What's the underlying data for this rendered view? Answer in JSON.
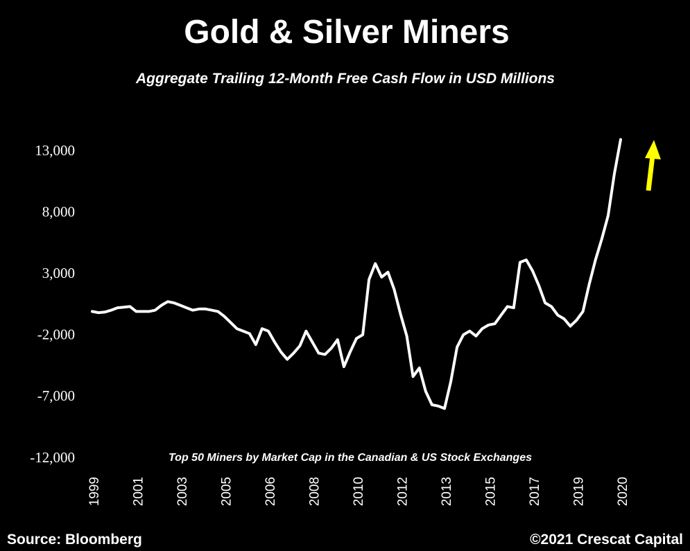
{
  "chart_data": {
    "type": "line",
    "title": "Gold & Silver Miners",
    "subtitle": "Aggregate Trailing 12-Month Free Cash Flow in USD Millions",
    "annotation": "Top 50 Miners by Market Cap in the Canadian & US Stock Exchanges",
    "source": "Source: Bloomberg",
    "credit": "©2021 Crescat Capital",
    "categories": [
      "1999",
      null,
      null,
      null,
      null,
      null,
      null,
      "2001",
      null,
      null,
      null,
      null,
      null,
      null,
      "2003",
      null,
      null,
      null,
      null,
      null,
      null,
      "2005",
      null,
      null,
      null,
      null,
      null,
      null,
      "2006",
      null,
      null,
      null,
      null,
      null,
      null,
      "2008",
      null,
      null,
      null,
      null,
      null,
      null,
      "2010",
      null,
      null,
      null,
      null,
      null,
      null,
      "2012",
      null,
      null,
      null,
      null,
      null,
      null,
      "2013",
      null,
      null,
      null,
      null,
      null,
      null,
      "2015",
      null,
      null,
      null,
      null,
      null,
      null,
      "2017",
      null,
      null,
      null,
      null,
      null,
      null,
      "2019",
      null,
      null,
      null,
      null,
      null,
      null,
      "2020"
    ],
    "series": [
      {
        "name": "Free Cash Flow",
        "color": "#ffffff",
        "values": [
          0,
          -100,
          -50,
          100,
          300,
          350,
          400,
          0,
          0,
          0,
          100,
          500,
          800,
          700,
          500,
          300,
          100,
          200,
          200,
          100,
          0,
          -400,
          -900,
          -1400,
          -1600,
          -1800,
          -2700,
          -1400,
          -1600,
          -2500,
          -3300,
          -3900,
          -3400,
          -2800,
          -1600,
          -2500,
          -3400,
          -3500,
          -3000,
          -2300,
          -4500,
          -3300,
          -2200,
          -1900,
          2600,
          3900,
          2800,
          3200,
          1800,
          -200,
          -2000,
          -5300,
          -4600,
          -6500,
          -7600,
          -7700,
          -7900,
          -5700,
          -2900,
          -1900,
          -1600,
          -2000,
          -1400,
          -1100,
          -1000,
          -300,
          400,
          300,
          4000,
          4200,
          3300,
          2100,
          700,
          400,
          -300,
          -600,
          -1200,
          -700,
          0,
          2200,
          4200,
          5900,
          7800,
          11200,
          14000
        ]
      }
    ],
    "ylim": [
      -12000,
      15000
    ],
    "yticks": [
      {
        "value": -12000,
        "label": "-12,000"
      },
      {
        "value": -7000,
        "label": "-7,000"
      },
      {
        "value": -2000,
        "label": "-2,000"
      },
      {
        "value": 3000,
        "label": "3,000"
      },
      {
        "value": 8000,
        "label": "8,000"
      },
      {
        "value": 13000,
        "label": "13,000"
      }
    ],
    "grid": false
  }
}
